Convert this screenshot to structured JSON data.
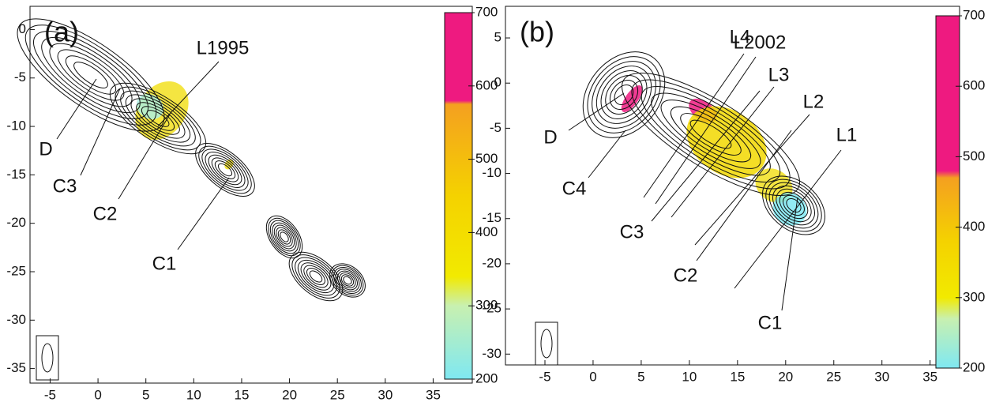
{
  "chart_data": [
    {
      "type": "contour",
      "label": "(a)",
      "xlim": [
        -7.1,
        36.2
      ],
      "ylim": [
        -36.5,
        2.4
      ],
      "xticks": [
        -5,
        0,
        5,
        10,
        15,
        20,
        25,
        30,
        35
      ],
      "yticks": [
        0,
        -5,
        -10,
        -15,
        -20,
        -25,
        -30,
        -35
      ],
      "colorbar": {
        "lim": [
          200,
          700
        ],
        "ticks": [
          200,
          300,
          400,
          500,
          600,
          700
        ],
        "colormap": [
          {
            "value": 200,
            "color": "#7fe8f2"
          },
          {
            "value": 300,
            "color": "#c8f0b0"
          },
          {
            "value": 340,
            "color": "#f2ea00"
          },
          {
            "value": 450,
            "color": "#f4d200"
          },
          {
            "value": 575,
            "color": "#f4a020"
          },
          {
            "value": 580,
            "color": "#ee1a80"
          },
          {
            "value": 700,
            "color": "#ee1a80"
          }
        ]
      },
      "annotations": [
        "D",
        "C3",
        "C2",
        "C1",
        "L1995"
      ]
    },
    {
      "type": "contour",
      "label": "(b)",
      "xlim": [
        -9.1,
        35.6
      ],
      "ylim": [
        -31.2,
        8.5
      ],
      "xticks": [
        -5,
        0,
        5,
        10,
        15,
        20,
        25,
        30,
        35
      ],
      "yticks": [
        5,
        0,
        -5,
        -10,
        -15,
        -20,
        -25,
        -30
      ],
      "colorbar": {
        "lim": [
          200,
          700
        ],
        "ticks": [
          200,
          300,
          400,
          500,
          600,
          700
        ],
        "colormap": [
          {
            "value": 200,
            "color": "#7fe8f2"
          },
          {
            "value": 270,
            "color": "#c8f0b0"
          },
          {
            "value": 300,
            "color": "#f2ea00"
          },
          {
            "value": 380,
            "color": "#f4d200"
          },
          {
            "value": 470,
            "color": "#f4a020"
          },
          {
            "value": 480,
            "color": "#ee1a80"
          },
          {
            "value": 700,
            "color": "#ee1a80"
          }
        ]
      },
      "annotations": [
        "D",
        "C4",
        "C3",
        "C2",
        "C1",
        "L4",
        "L2002",
        "L3",
        "L2",
        "L1"
      ]
    }
  ]
}
